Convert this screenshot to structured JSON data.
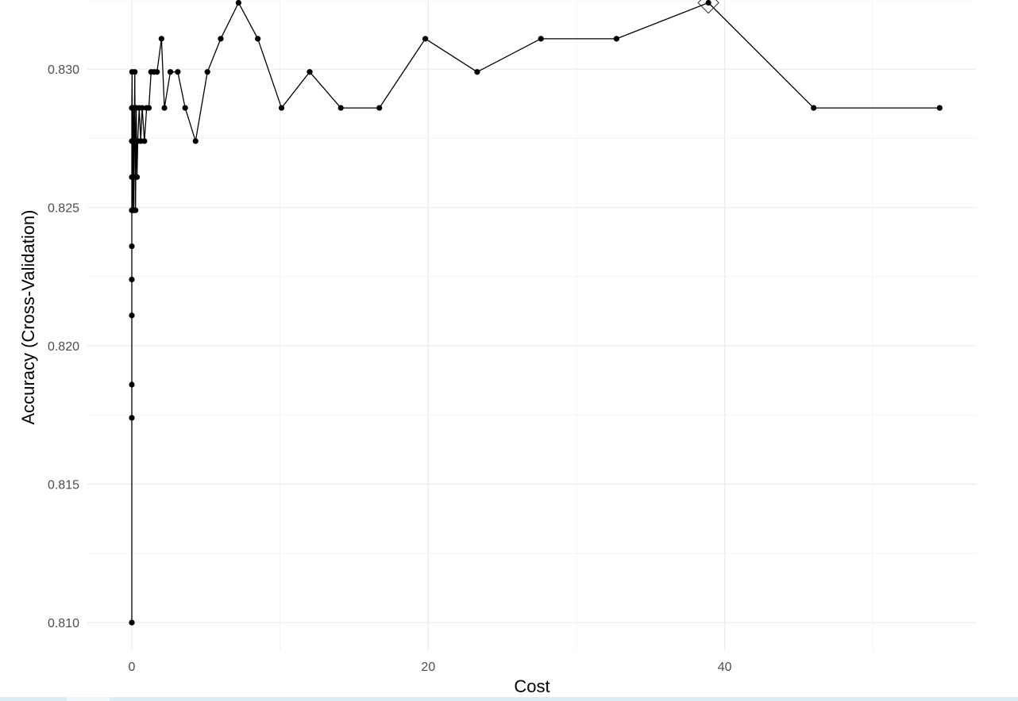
{
  "chart_data": {
    "type": "line",
    "title": "",
    "xlabel": "Cost",
    "ylabel": "Accuracy (Cross-Validation)",
    "xlim": [
      -3,
      57
    ],
    "ylim": [
      0.809,
      0.8325
    ],
    "x_ticks": [
      0,
      20,
      40
    ],
    "x_tick_labels": [
      "0",
      "20",
      "40"
    ],
    "y_ticks": [
      0.81,
      0.815,
      0.82,
      0.825,
      0.83
    ],
    "y_tick_labels": [
      "0.810",
      "0.815",
      "0.820",
      "0.825",
      "0.830"
    ],
    "grid": true,
    "legend": "none",
    "colors": {
      "line": "#000000",
      "points": "#000000",
      "grid_major": "#ebebeb",
      "grid_minor": "#f4f4f4",
      "highlight": "#333333"
    },
    "highlight_marker": "diamond",
    "highlight_point": {
      "x": 38.9,
      "y": 0.8324
    },
    "series": [
      {
        "x": [
          0.0,
          0.0,
          0.0,
          0.0,
          0.0,
          0.0,
          0.0,
          0.0,
          0.0,
          0.0,
          0.02,
          0.04,
          0.06,
          0.08,
          0.1,
          0.12,
          0.14,
          0.16,
          0.2,
          0.25,
          0.3,
          0.35,
          0.4,
          0.5,
          0.6,
          0.7,
          0.85,
          1.0,
          1.15,
          1.3,
          1.5,
          1.7,
          2.0,
          2.2,
          2.6,
          3.1,
          3.6,
          4.3,
          5.1,
          6.0,
          7.2,
          8.5,
          10.1,
          12.0,
          14.1,
          16.7,
          19.8,
          23.3,
          27.6,
          32.7,
          38.9,
          46.0,
          54.5
        ],
        "y": [
          0.81,
          0.8174,
          0.8186,
          0.8211,
          0.8224,
          0.8236,
          0.8249,
          0.8261,
          0.8274,
          0.8286,
          0.8299,
          0.8261,
          0.8249,
          0.8274,
          0.8286,
          0.8261,
          0.8249,
          0.8274,
          0.8299,
          0.8249,
          0.8286,
          0.8261,
          0.8274,
          0.8286,
          0.8274,
          0.8286,
          0.8274,
          0.8286,
          0.8286,
          0.8299,
          0.8299,
          0.8299,
          0.8311,
          0.8286,
          0.8299,
          0.8299,
          0.8286,
          0.8274,
          0.8299,
          0.8311,
          0.8324,
          0.8311,
          0.8286,
          0.8299,
          0.8286,
          0.8286,
          0.8311,
          0.8299,
          0.8311,
          0.8311,
          0.8324,
          0.8286,
          0.8286
        ]
      }
    ]
  }
}
